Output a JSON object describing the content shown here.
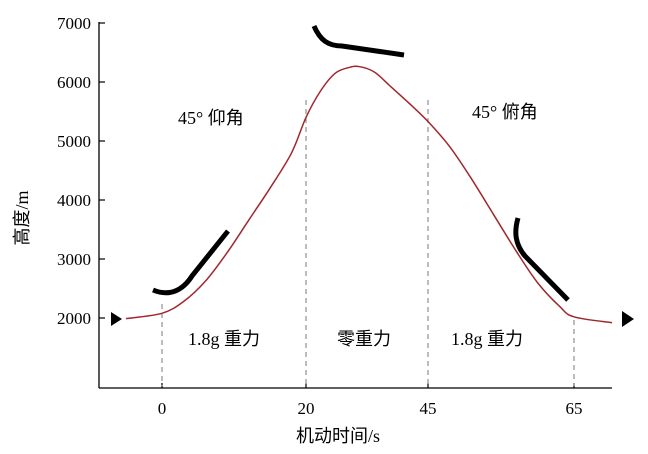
{
  "chart_data": {
    "type": "line",
    "title": "",
    "xlabel": "机动时间/s",
    "ylabel": "高度/m",
    "y_ticks": [
      "7000",
      "6000",
      "5000",
      "4000",
      "3000",
      "2000"
    ],
    "x_ticks": [
      "0",
      "20",
      "45",
      "65"
    ],
    "grid": false,
    "phase_boundaries": [
      "0",
      "20",
      "45",
      "65"
    ],
    "series": [
      {
        "points": [
          [
            "-5",
            1990
          ],
          [
            "0",
            2080
          ],
          [
            "3",
            2280
          ],
          [
            "6",
            2620
          ],
          [
            "9",
            3100
          ],
          [
            "12",
            3650
          ],
          [
            "15",
            4200
          ],
          [
            "18",
            4800
          ],
          [
            "20",
            5400
          ],
          [
            "23",
            5850
          ],
          [
            "26",
            6150
          ],
          [
            "29",
            6250
          ],
          [
            "31",
            6260
          ],
          [
            "34",
            6170
          ],
          [
            "37",
            5950
          ],
          [
            "41",
            5650
          ],
          [
            "45",
            5330
          ],
          [
            "48",
            4900
          ],
          [
            "51",
            4350
          ],
          [
            "54",
            3750
          ],
          [
            "57",
            3150
          ],
          [
            "60",
            2600
          ],
          [
            "63",
            2200
          ],
          [
            "65",
            2020
          ],
          [
            "70",
            1920
          ]
        ]
      }
    ],
    "annotations": [
      {
        "id": "pitch-up",
        "text": "45° 仰角"
      },
      {
        "id": "pitch-down",
        "text": "45° 俯角"
      },
      {
        "id": "phase-1",
        "text": "1.8g 重力"
      },
      {
        "id": "phase-2",
        "text": "零重力"
      },
      {
        "id": "phase-3",
        "text": "1.8g 重力"
      }
    ]
  }
}
